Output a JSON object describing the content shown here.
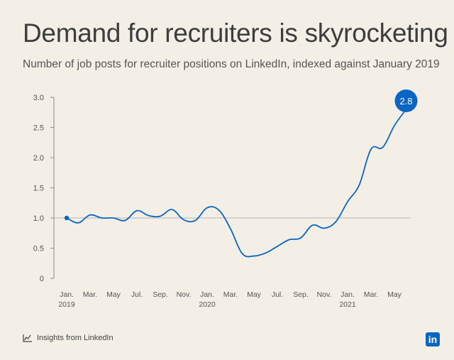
{
  "header": {
    "title": "Demand for recruiters is skyrocketing",
    "subtitle": "Number of job posts for recruiter positions on LinkedIn, indexed against January 2019"
  },
  "footer": {
    "source_label": "Insights from LinkedIn",
    "source_icon": "line-chart-icon",
    "logo_text": "in"
  },
  "colors": {
    "background": "#f3eee6",
    "line": "#0a66c2",
    "axis": "#8a8a8a",
    "baseline": "#b5b5b5"
  },
  "chart_data": {
    "type": "line",
    "title": "Demand for recruiters is skyrocketing",
    "subtitle": "Number of job posts for recruiter positions on LinkedIn, indexed against January 2019",
    "xlabel": "",
    "ylabel": "",
    "ylim": [
      0,
      3.0
    ],
    "yticks": [
      0,
      0.5,
      1.0,
      1.5,
      2.0,
      2.5,
      3.0
    ],
    "ytick_labels": [
      "0",
      "0.5",
      "1.0",
      "1.5",
      "2.0",
      "2.5",
      "3.0"
    ],
    "grid": false,
    "reference_line": 1.0,
    "x_tick_labels": [
      {
        "month": "2019-01",
        "line1": "Jan.",
        "line2": "2019"
      },
      {
        "month": "2019-03",
        "line1": "Mar.",
        "line2": ""
      },
      {
        "month": "2019-05",
        "line1": "May",
        "line2": ""
      },
      {
        "month": "2019-07",
        "line1": "Jul.",
        "line2": ""
      },
      {
        "month": "2019-09",
        "line1": "Sep.",
        "line2": ""
      },
      {
        "month": "2019-11",
        "line1": "Nov.",
        "line2": ""
      },
      {
        "month": "2020-01",
        "line1": "Jan.",
        "line2": "2020"
      },
      {
        "month": "2020-03",
        "line1": "Mar.",
        "line2": ""
      },
      {
        "month": "2020-05",
        "line1": "May",
        "line2": ""
      },
      {
        "month": "2020-07",
        "line1": "Jul.",
        "line2": ""
      },
      {
        "month": "2020-09",
        "line1": "Sep.",
        "line2": ""
      },
      {
        "month": "2020-11",
        "line1": "Nov.",
        "line2": ""
      },
      {
        "month": "2021-01",
        "line1": "Jan.",
        "line2": "2021"
      },
      {
        "month": "2021-03",
        "line1": "Mar.",
        "line2": ""
      },
      {
        "month": "2021-05",
        "line1": "May",
        "line2": ""
      }
    ],
    "series": [
      {
        "x": [
          "2019-01",
          "2019-02",
          "2019-03",
          "2019-04",
          "2019-05",
          "2019-06",
          "2019-07",
          "2019-08",
          "2019-09",
          "2019-10",
          "2019-11",
          "2019-12",
          "2020-01",
          "2020-02",
          "2020-03",
          "2020-04",
          "2020-05",
          "2020-06",
          "2020-07",
          "2020-08",
          "2020-09",
          "2020-10",
          "2020-11",
          "2020-12",
          "2021-01",
          "2021-02",
          "2021-03",
          "2021-04",
          "2021-05",
          "2021-06"
        ],
        "values": [
          1.0,
          0.92,
          1.05,
          1.0,
          1.0,
          0.96,
          1.12,
          1.04,
          1.03,
          1.14,
          0.97,
          0.96,
          1.17,
          1.13,
          0.82,
          0.41,
          0.37,
          0.42,
          0.53,
          0.64,
          0.67,
          0.88,
          0.83,
          0.94,
          1.27,
          1.55,
          2.14,
          2.17,
          2.53,
          2.8
        ]
      }
    ],
    "start_marker": {
      "x": "2019-01",
      "value": 1.0
    },
    "end_label": {
      "x": "2021-06",
      "value": 2.8,
      "text": "2.8"
    }
  }
}
